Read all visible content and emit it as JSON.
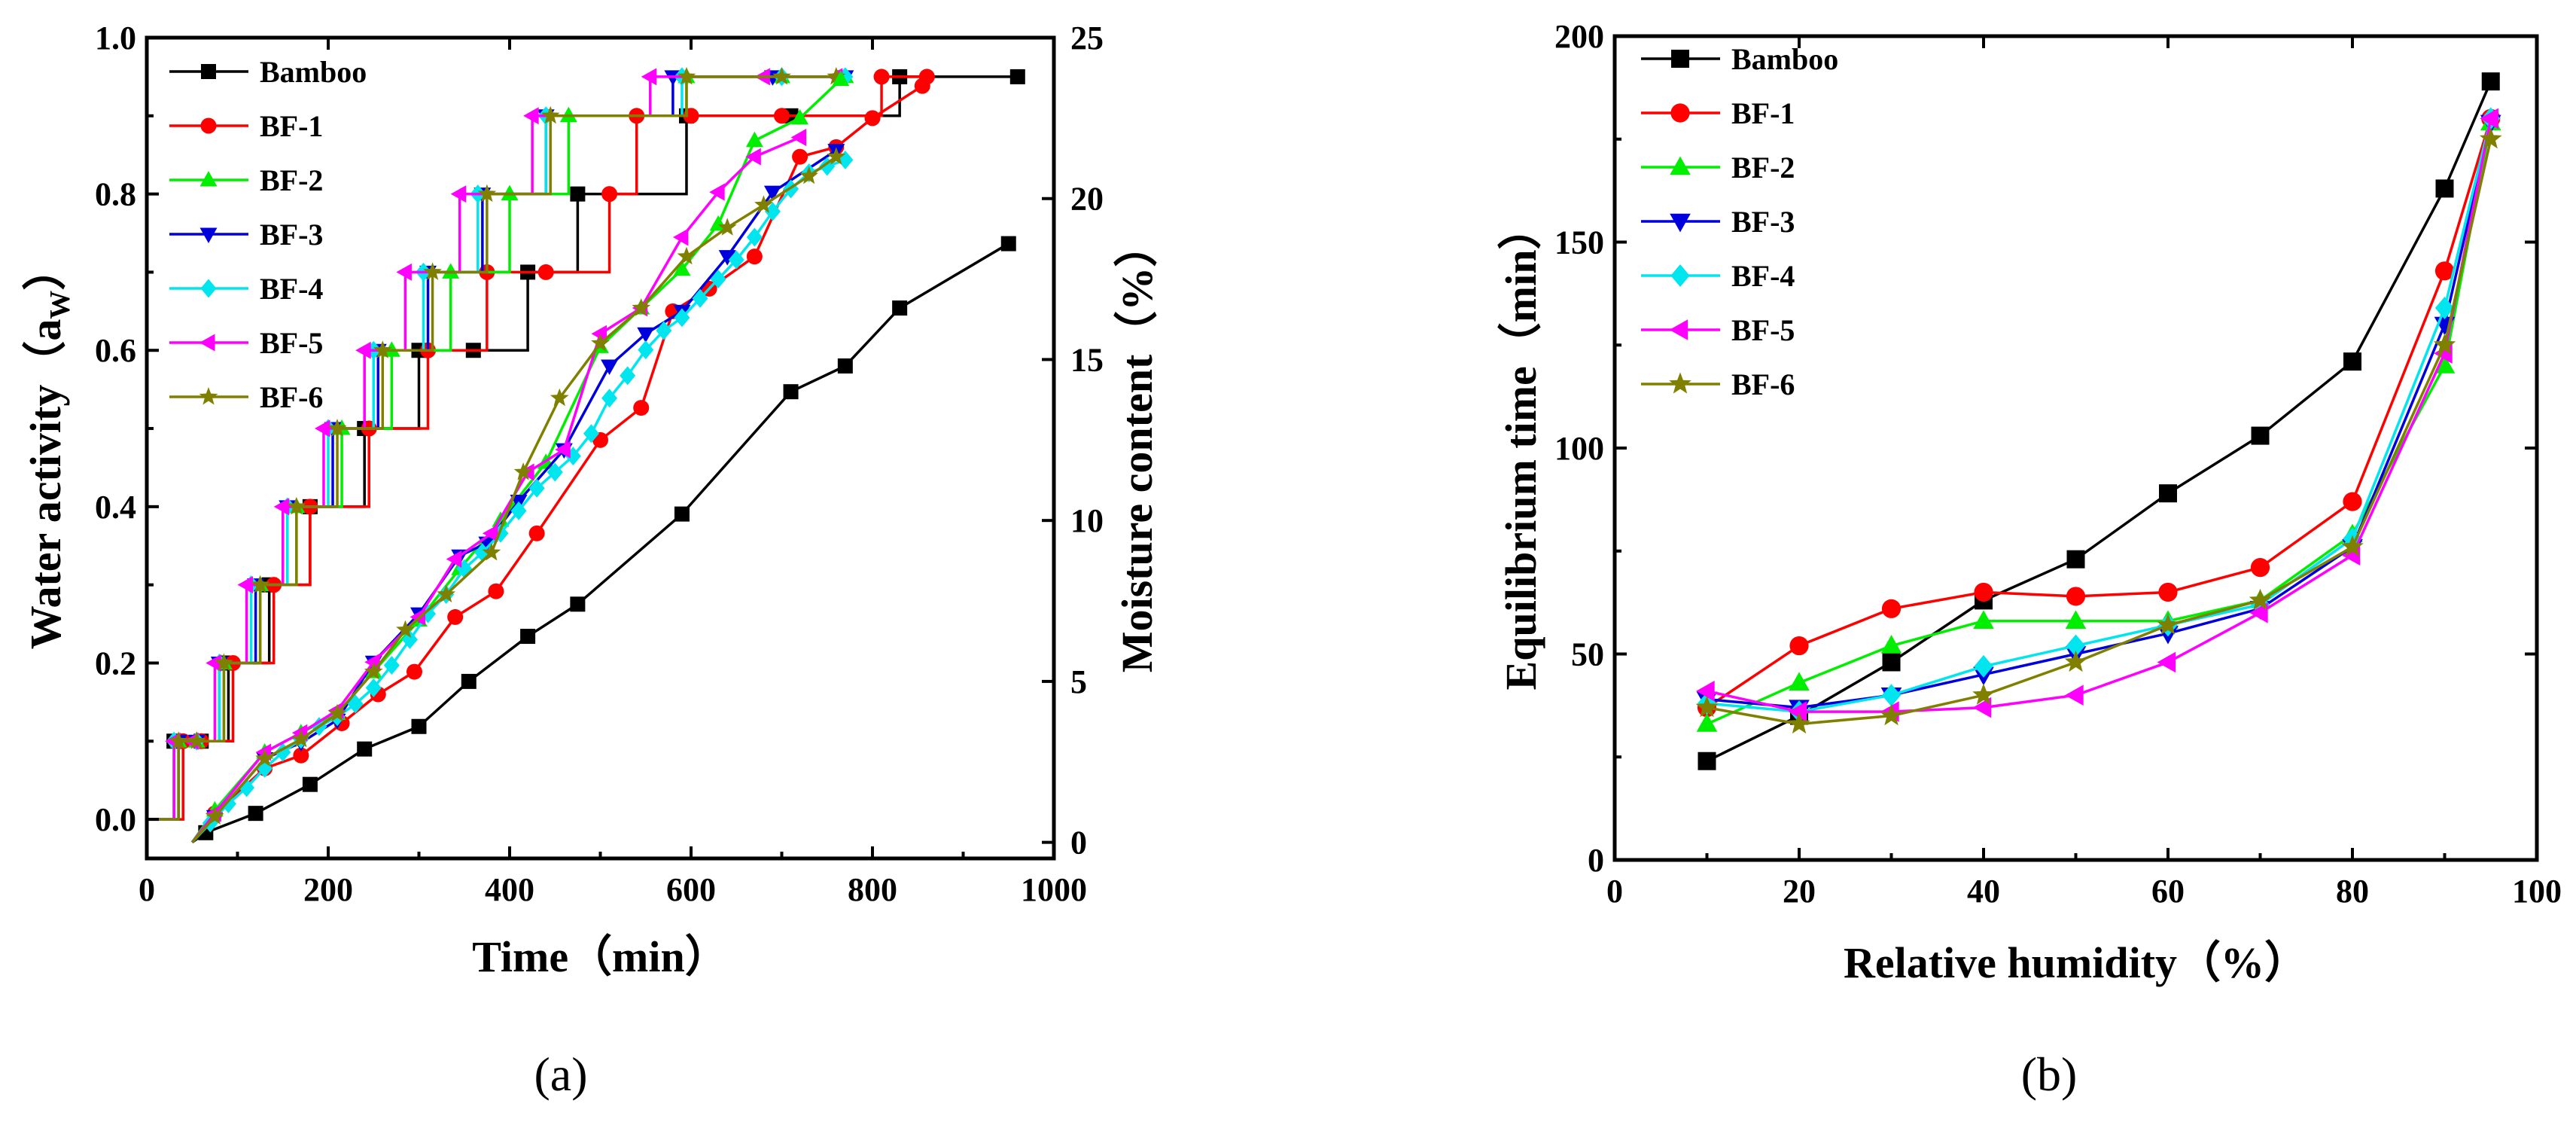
{
  "colors": {
    "Bamboo": "#000000",
    "BF-1": "#ff0000",
    "BF-2": "#00ee00",
    "BF-3": "#0000dd",
    "BF-4": "#00e5ee",
    "BF-5": "#ff00ff",
    "BF-6": "#808000"
  },
  "chart_data": [
    {
      "type": "line",
      "panel_label": "(a)",
      "xlabel": "Time（min）",
      "ylabel_left": "Water activity（a",
      "ylabel_left_sub": "W",
      "ylabel_left_end": "）",
      "ylabel_right": "Moisture content（%）",
      "xlim": [
        0,
        1000
      ],
      "ylim_left": [
        -0.05,
        1.0
      ],
      "ylim_right": [
        -0.5,
        25
      ],
      "xticks": [
        "0",
        "200",
        "400",
        "600",
        "800",
        "1000"
      ],
      "yticks_left": [
        "0.0",
        "0.2",
        "0.4",
        "0.6",
        "0.8",
        "1.0"
      ],
      "yticks_right": [
        "0",
        "5",
        "10",
        "15",
        "20",
        "25"
      ],
      "legend": [
        "Bamboo",
        "BF-1",
        "BF-2",
        "BF-3",
        "BF-4",
        "BF-5",
        "BF-6"
      ],
      "legend_position": "top-left",
      "water_activity_steps": [
        {
          "name": "Bamboo",
          "x": [
            0,
            15,
            30,
            60,
            90,
            135,
            180,
            240,
            300,
            360,
            420,
            475,
            595,
            710,
            830,
            960
          ],
          "y": [
            0,
            0,
            0.1,
            0.1,
            0.2,
            0.3,
            0.4,
            0.5,
            0.6,
            0.6,
            0.7,
            0.8,
            0.9,
            0.9,
            0.95,
            0.95
          ]
        },
        {
          "name": "BF-1",
          "x": [
            0,
            15,
            40,
            60,
            95,
            140,
            180,
            245,
            310,
            375,
            440,
            510,
            540,
            600,
            700,
            810,
            860
          ],
          "y": [
            0,
            0,
            0.1,
            0.1,
            0.2,
            0.3,
            0.4,
            0.5,
            0.6,
            0.7,
            0.7,
            0.8,
            0.9,
            0.9,
            0.9,
            0.95,
            0.95
          ]
        },
        {
          "name": "BF-2",
          "x": [
            0,
            15,
            35,
            55,
            85,
            125,
            165,
            215,
            270,
            335,
            400,
            465,
            595,
            700,
            770
          ],
          "y": [
            0,
            0,
            0.1,
            0.1,
            0.2,
            0.3,
            0.4,
            0.5,
            0.6,
            0.7,
            0.8,
            0.9,
            0.95,
            0.95,
            0.95
          ]
        },
        {
          "name": "BF-3",
          "x": [
            0,
            15,
            35,
            55,
            80,
            120,
            155,
            205,
            255,
            310,
            370,
            440,
            580,
            690,
            770
          ],
          "y": [
            0,
            0,
            0.1,
            0.1,
            0.2,
            0.3,
            0.4,
            0.5,
            0.6,
            0.7,
            0.8,
            0.9,
            0.95,
            0.95,
            0.95
          ]
        },
        {
          "name": "BF-4",
          "x": [
            0,
            15,
            30,
            55,
            80,
            115,
            155,
            200,
            250,
            305,
            365,
            440,
            590,
            700,
            770
          ],
          "y": [
            0,
            0,
            0.1,
            0.1,
            0.2,
            0.3,
            0.4,
            0.5,
            0.6,
            0.7,
            0.8,
            0.9,
            0.95,
            0.95,
            0.95
          ]
        },
        {
          "name": "BF-5",
          "x": [
            0,
            15,
            30,
            50,
            75,
            110,
            150,
            195,
            240,
            285,
            345,
            425,
            555,
            680,
            760
          ],
          "y": [
            0,
            0,
            0.1,
            0.1,
            0.2,
            0.3,
            0.4,
            0.5,
            0.6,
            0.7,
            0.8,
            0.9,
            0.95,
            0.95,
            0.95
          ]
        },
        {
          "name": "BF-6",
          "x": [
            0,
            15,
            35,
            55,
            85,
            125,
            165,
            210,
            260,
            315,
            375,
            445,
            595,
            700,
            760
          ],
          "y": [
            0,
            0,
            0.1,
            0.1,
            0.2,
            0.3,
            0.4,
            0.5,
            0.6,
            0.7,
            0.8,
            0.9,
            0.95,
            0.95,
            0.95
          ]
        }
      ],
      "moisture_content": [
        {
          "name": "Bamboo",
          "x": [
            50,
            65,
            120,
            180,
            240,
            300,
            355,
            420,
            475,
            590,
            710,
            770,
            830,
            950
          ],
          "y": [
            0,
            0.3,
            0.9,
            1.8,
            2.9,
            3.6,
            5.0,
            6.4,
            7.4,
            10.2,
            14.0,
            14.8,
            16.6,
            18.6
          ]
        },
        {
          "name": "BF-1",
          "x": [
            50,
            75,
            130,
            170,
            215,
            255,
            295,
            340,
            385,
            430,
            500,
            545,
            580,
            620,
            670,
            720,
            760,
            800,
            855
          ],
          "y": [
            0,
            0.9,
            2.3,
            2.7,
            3.7,
            4.6,
            5.3,
            7.0,
            7.8,
            9.6,
            12.5,
            13.5,
            16.5,
            17.2,
            18.2,
            21.3,
            21.6,
            22.5,
            23.5
          ]
        },
        {
          "name": "BF-2",
          "x": [
            50,
            75,
            130,
            170,
            210,
            250,
            300,
            345,
            390,
            440,
            500,
            545,
            590,
            630,
            670,
            720,
            765
          ],
          "y": [
            0,
            1.0,
            2.8,
            3.4,
            4.0,
            5.3,
            6.9,
            8.5,
            10.0,
            11.8,
            15.4,
            16.6,
            17.8,
            19.2,
            21.8,
            22.5,
            23.7
          ]
        },
        {
          "name": "BF-3",
          "x": [
            50,
            75,
            130,
            170,
            210,
            250,
            300,
            345,
            375,
            410,
            460,
            510,
            550,
            590,
            640,
            690,
            760
          ],
          "y": [
            0,
            0.8,
            2.6,
            3.1,
            3.8,
            5.6,
            7.1,
            8.9,
            9.3,
            10.6,
            12.2,
            14.8,
            15.8,
            16.5,
            18.2,
            20.2,
            21.5
          ]
        },
        {
          "name": "BF-4",
          "x": [
            50,
            70,
            90,
            110,
            130,
            150,
            170,
            190,
            210,
            230,
            250,
            270,
            290,
            310,
            330,
            350,
            370,
            390,
            410,
            430,
            450,
            470,
            490,
            510,
            530,
            550,
            570,
            590,
            610,
            630,
            650,
            670,
            690,
            710,
            730,
            750,
            770
          ],
          "y": [
            0,
            0.6,
            1.2,
            1.7,
            2.3,
            2.8,
            3.2,
            3.6,
            3.9,
            4.3,
            4.8,
            5.5,
            6.3,
            7.1,
            7.7,
            8.5,
            9.0,
            9.6,
            10.3,
            11.0,
            11.5,
            12.0,
            12.7,
            13.8,
            14.5,
            15.3,
            15.9,
            16.3,
            16.9,
            17.5,
            18.1,
            18.8,
            19.6,
            20.3,
            20.8,
            21.0,
            21.2
          ]
        },
        {
          "name": "BF-5",
          "x": [
            50,
            75,
            130,
            170,
            210,
            250,
            300,
            340,
            380,
            420,
            460,
            500,
            545,
            590,
            630,
            670,
            720
          ],
          "y": [
            0,
            0.9,
            2.8,
            3.4,
            4.1,
            5.6,
            7.0,
            8.8,
            9.6,
            11.5,
            12.2,
            15.8,
            16.6,
            18.8,
            20.2,
            21.3,
            21.9
          ]
        },
        {
          "name": "BF-6",
          "x": [
            50,
            75,
            130,
            170,
            210,
            250,
            285,
            330,
            380,
            415,
            455,
            500,
            545,
            595,
            640,
            680,
            730,
            760
          ],
          "y": [
            0,
            0.8,
            2.6,
            3.2,
            4.0,
            5.3,
            6.6,
            7.7,
            9.0,
            11.5,
            13.8,
            15.5,
            16.6,
            18.2,
            19.1,
            19.8,
            20.7,
            21.3
          ]
        }
      ]
    },
    {
      "type": "line",
      "panel_label": "(b)",
      "xlabel": "Relative humidity（%）",
      "ylabel": "Equilibrium time（min）",
      "xlim": [
        0,
        100
      ],
      "ylim": [
        0,
        200
      ],
      "xticks": [
        "0",
        "20",
        "40",
        "60",
        "80",
        "100"
      ],
      "yticks": [
        "0",
        "50",
        "100",
        "150",
        "200"
      ],
      "legend": [
        "Bamboo",
        "BF-1",
        "BF-2",
        "BF-3",
        "BF-4",
        "BF-5",
        "BF-6"
      ],
      "legend_position": "top-left",
      "x": [
        10,
        20,
        30,
        40,
        50,
        60,
        70,
        80,
        90,
        95
      ],
      "series": [
        {
          "name": "Bamboo",
          "marker": "square",
          "values": [
            24,
            35,
            48,
            63,
            73,
            89,
            103,
            121,
            163,
            189
          ]
        },
        {
          "name": "BF-1",
          "marker": "circle",
          "values": [
            37,
            52,
            61,
            65,
            64,
            65,
            71,
            87,
            143,
            180
          ]
        },
        {
          "name": "BF-2",
          "marker": "triangle-up",
          "values": [
            33,
            43,
            52,
            58,
            58,
            58,
            63,
            79,
            120,
            179
          ]
        },
        {
          "name": "BF-3",
          "marker": "triangle-down",
          "values": [
            39,
            37,
            40,
            45,
            50,
            55,
            61,
            76,
            130,
            179
          ]
        },
        {
          "name": "BF-4",
          "marker": "diamond",
          "values": [
            38,
            36,
            40,
            47,
            52,
            57,
            62,
            78,
            134,
            180
          ]
        },
        {
          "name": "BF-5",
          "marker": "triangle-left",
          "values": [
            41,
            36,
            36,
            37,
            40,
            48,
            60,
            74,
            123,
            180
          ]
        },
        {
          "name": "BF-6",
          "marker": "star",
          "values": [
            37,
            33,
            35,
            40,
            48,
            57,
            63,
            76,
            125,
            175
          ]
        }
      ]
    }
  ]
}
